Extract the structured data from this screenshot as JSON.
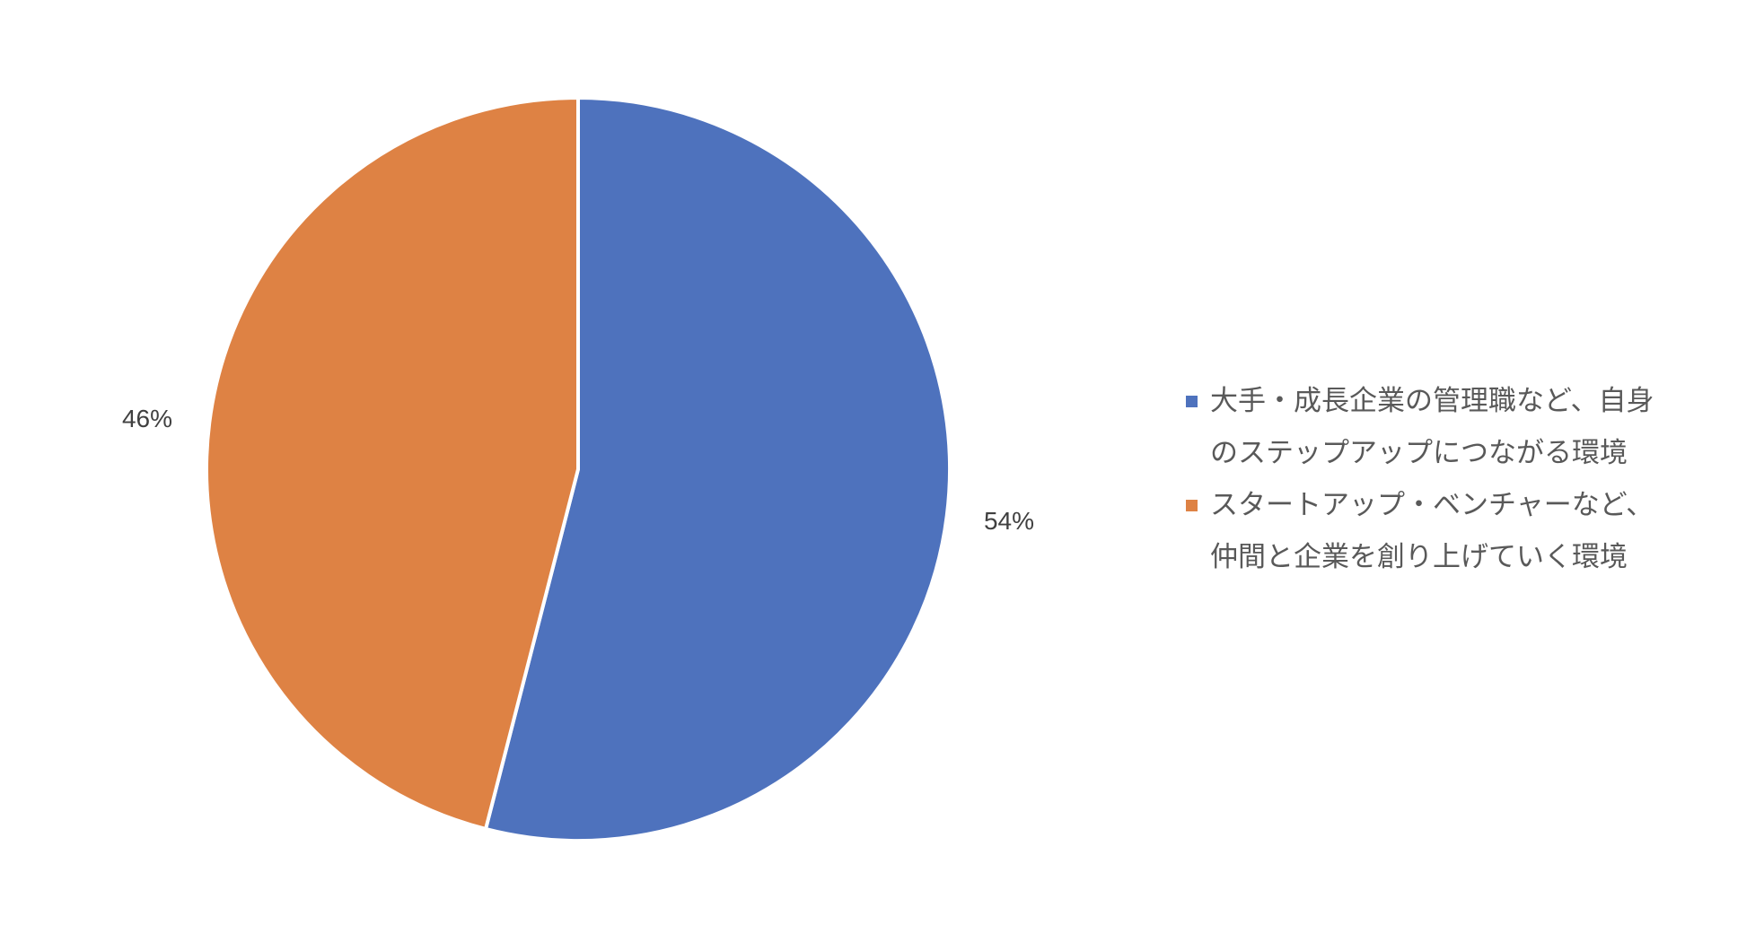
{
  "chart_data": {
    "type": "pie",
    "title": "",
    "start_angle": "12 o'clock, clockwise",
    "slices": [
      {
        "name": "大手・成長企業の管理職など、自身のステップアップにつながる環境",
        "value": 54,
        "label": "54%",
        "color": "#4E72BD"
      },
      {
        "name": "スタートアップ・ベンチャーなど、仲間と企業を創り上げていく環境",
        "value": 46,
        "label": "46%",
        "color": "#DE8244"
      }
    ],
    "legend": {
      "placement": "right",
      "lines": [
        [
          "大手・成長企業の管理職など、自身",
          "のステップアップにつながる環境"
        ],
        [
          "スタートアップ・ベンチャーなど、",
          "仲間と企業を創り上げていく環境"
        ]
      ]
    }
  }
}
